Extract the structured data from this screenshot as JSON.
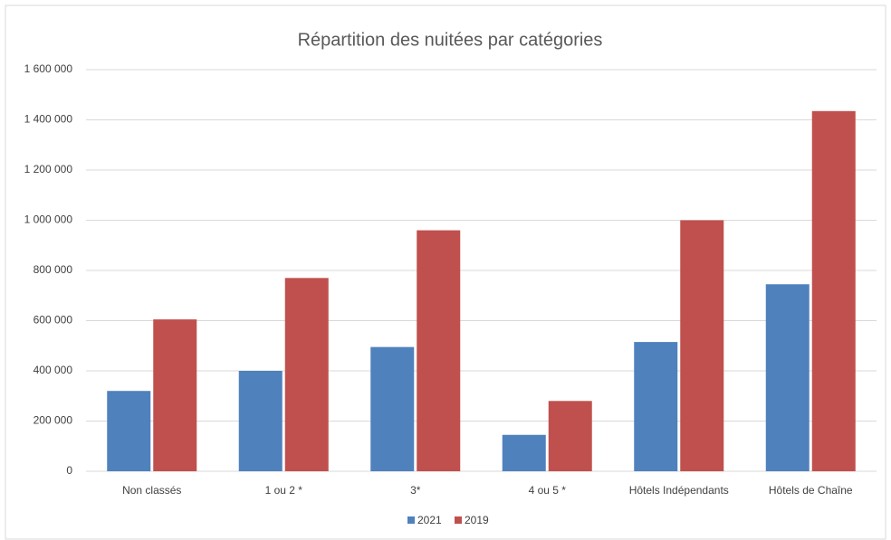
{
  "chart_data": {
    "type": "bar",
    "title": "Répartition des nuitées par catégories",
    "categories": [
      "Non classés",
      "1 ou 2 *",
      "3*",
      "4 ou 5 *",
      "Hôtels Indépendants",
      "Hôtels de Chaîne"
    ],
    "series": [
      {
        "name": "2021",
        "color": "#4f81bd",
        "values": [
          320000,
          400000,
          495000,
          145000,
          515000,
          745000
        ]
      },
      {
        "name": "2019",
        "color": "#c0504d",
        "values": [
          605000,
          770000,
          960000,
          280000,
          1000000,
          1435000
        ]
      }
    ],
    "ylim": [
      0,
      1600000
    ],
    "yticks": [
      0,
      {
        "value": 200000,
        "label": "200 000"
      },
      {
        "value": 400000,
        "label": "400 000"
      },
      {
        "value": 600000,
        "label": "600 000"
      },
      {
        "value": 800000,
        "label": "800 000"
      },
      {
        "value": 1000000,
        "label": "1 000 000"
      },
      {
        "value": 1200000,
        "label": "1 200 000"
      },
      {
        "value": 1400000,
        "label": "1 400 000"
      },
      {
        "value": 1600000,
        "label": "1 600 000"
      }
    ],
    "grid": true,
    "legend": "bottom"
  }
}
